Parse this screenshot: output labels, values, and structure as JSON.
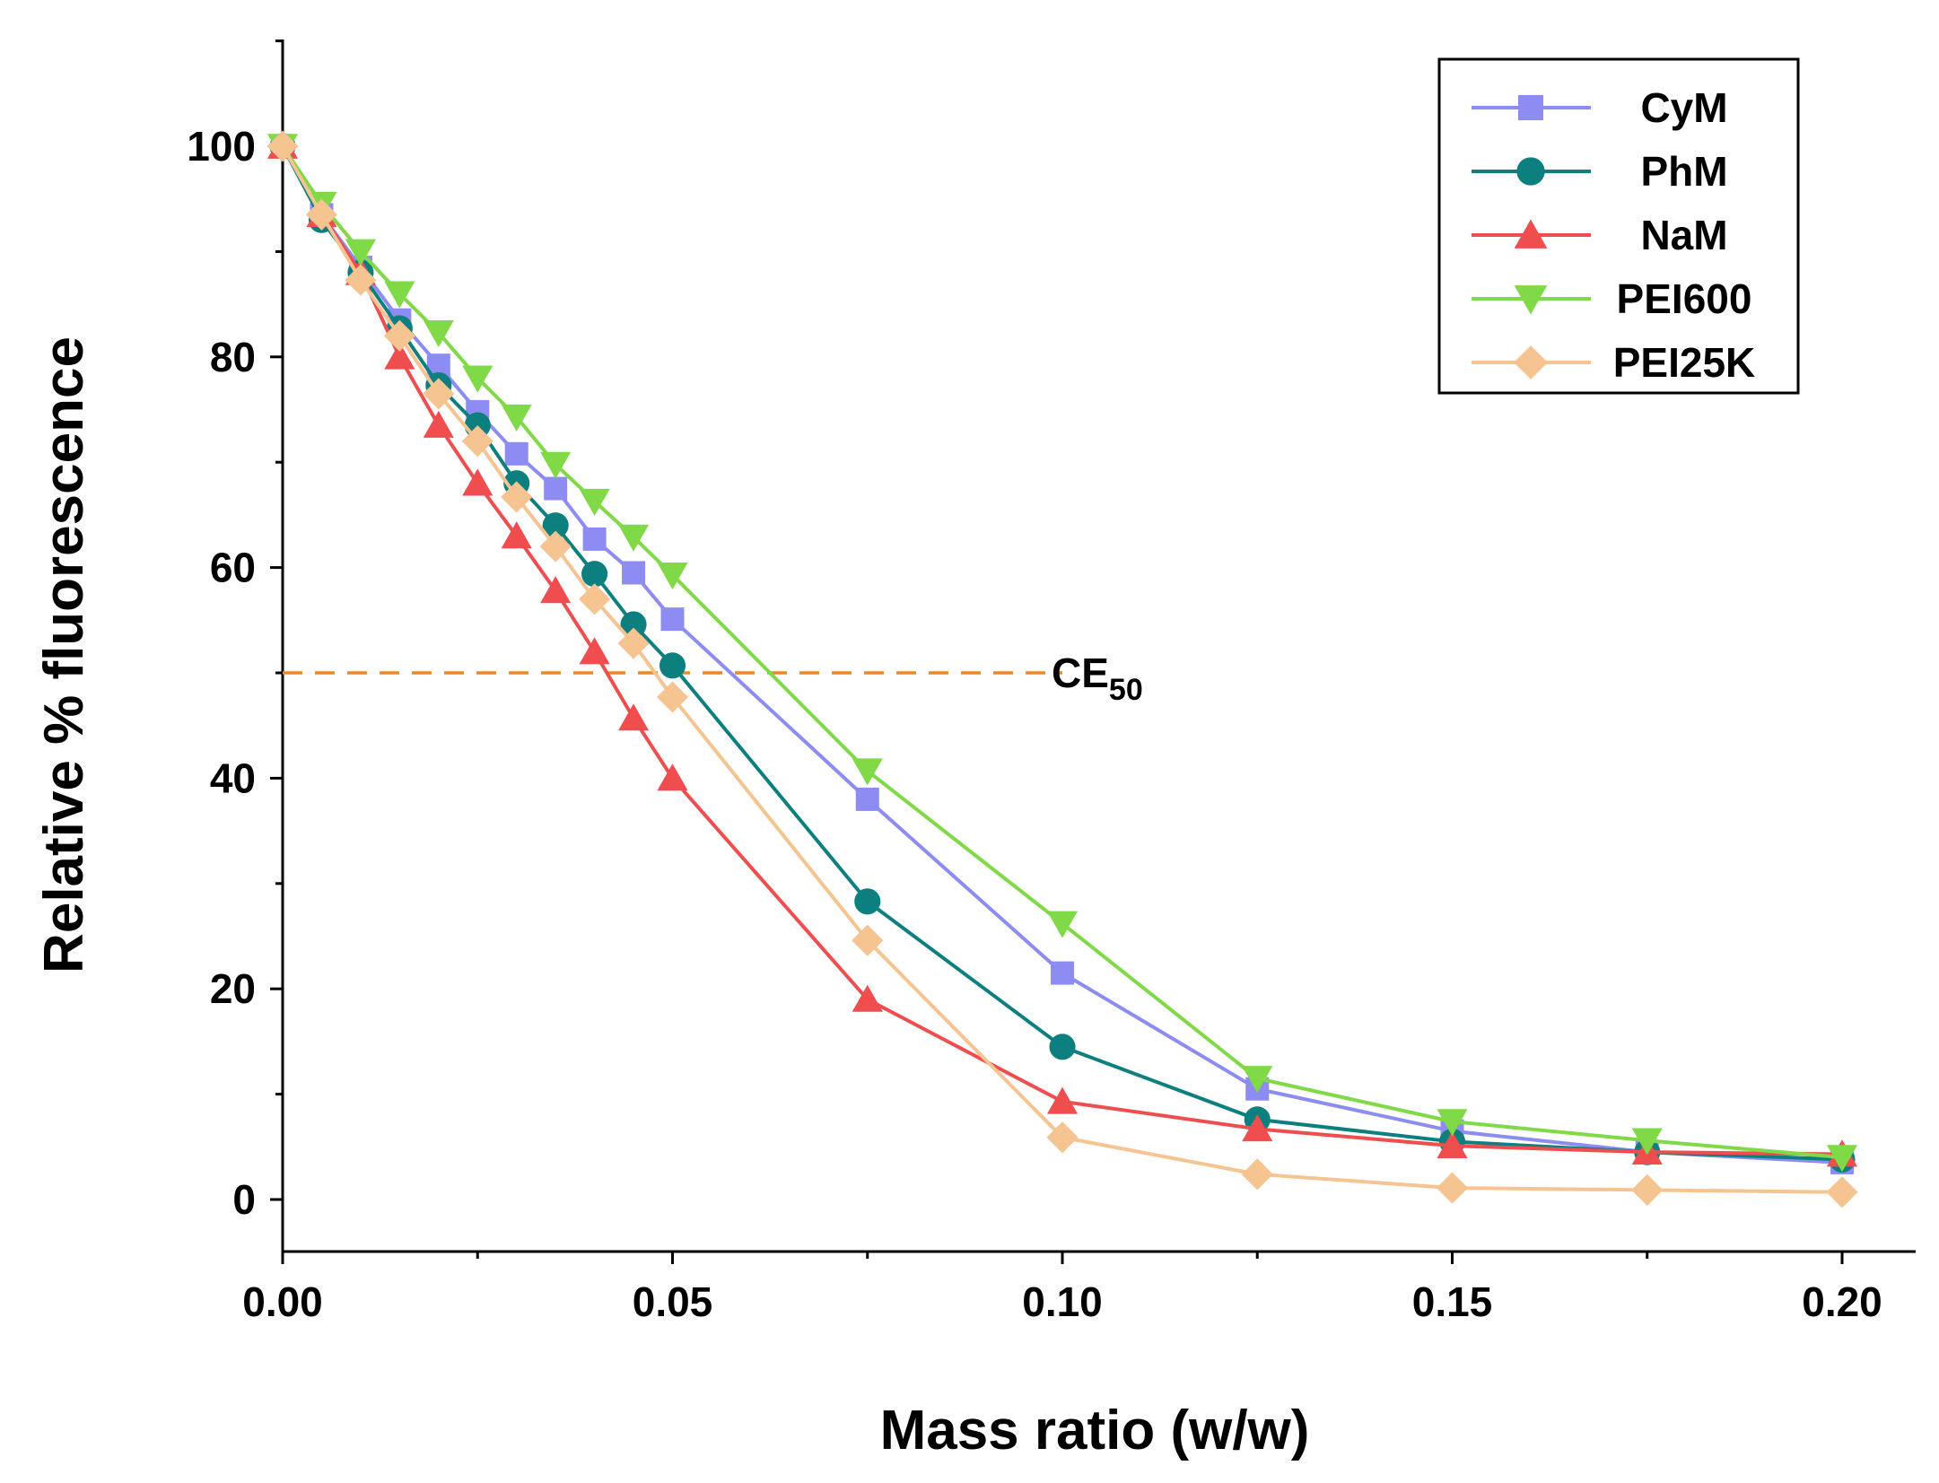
{
  "chart_data": {
    "type": "line",
    "title": "",
    "xlabel": "Mass ratio (w/w)",
    "ylabel": "Relative % fluorescence",
    "xlim": [
      0,
      0.21
    ],
    "ylim": [
      -5,
      110
    ],
    "x_ticks": [
      0.0,
      0.05,
      0.1,
      0.15,
      0.2
    ],
    "x_tick_labels": [
      "0.00",
      "0.05",
      "0.10",
      "0.15",
      "0.20"
    ],
    "y_ticks": [
      0,
      20,
      40,
      60,
      80,
      100
    ],
    "y_tick_labels": [
      "0",
      "20",
      "40",
      "60",
      "80",
      "100"
    ],
    "grid": false,
    "legend_position": "top-right",
    "x": [
      0,
      0.005,
      0.01,
      0.015,
      0.02,
      0.025,
      0.03,
      0.035,
      0.04,
      0.045,
      0.05,
      0.075,
      0.1,
      0.125,
      0.15,
      0.175,
      0.2
    ],
    "series": [
      {
        "name": "CyM",
        "color": "#8c8cf2",
        "marker": "square",
        "values": [
          100,
          93.5,
          88.5,
          83.5,
          79.2,
          74.8,
          70.8,
          67.5,
          62.7,
          59.5,
          55.1,
          38.0,
          21.5,
          10.5,
          6.5,
          4.5,
          3.5
        ]
      },
      {
        "name": "PhM",
        "color": "#0e7f7f",
        "marker": "circle",
        "values": [
          100,
          93.0,
          88.0,
          82.7,
          77.3,
          73.5,
          68.0,
          64.0,
          59.4,
          54.6,
          50.7,
          28.3,
          14.5,
          7.6,
          5.5,
          4.5,
          3.8
        ]
      },
      {
        "name": "NaM",
        "color": "#f04e4e",
        "marker": "triangle-up",
        "values": [
          100,
          93.5,
          88.0,
          80.0,
          73.5,
          68.0,
          63.0,
          57.8,
          52.0,
          45.7,
          40.0,
          19.0,
          9.3,
          6.7,
          5.1,
          4.5,
          4.3
        ]
      },
      {
        "name": "PEI600",
        "color": "#80d946",
        "marker": "triangle-down",
        "values": [
          100,
          94.5,
          90.0,
          86.0,
          82.3,
          78.0,
          74.3,
          69.8,
          66.3,
          62.9,
          59.3,
          40.7,
          26.2,
          11.5,
          7.4,
          5.6,
          4.0
        ]
      },
      {
        "name": "PEI25K",
        "color": "#f5c491",
        "marker": "diamond",
        "values": [
          100,
          93.5,
          87.3,
          82.0,
          76.5,
          72.0,
          66.7,
          62.0,
          57.0,
          52.8,
          47.7,
          24.6,
          5.9,
          2.4,
          1.1,
          0.9,
          0.7
        ]
      }
    ],
    "reference_line": {
      "label": "CE",
      "label_subscript": "50",
      "y": 50,
      "x_start": 0,
      "x_end": 0.1,
      "color": "#e8892a",
      "style": "dashed"
    }
  }
}
